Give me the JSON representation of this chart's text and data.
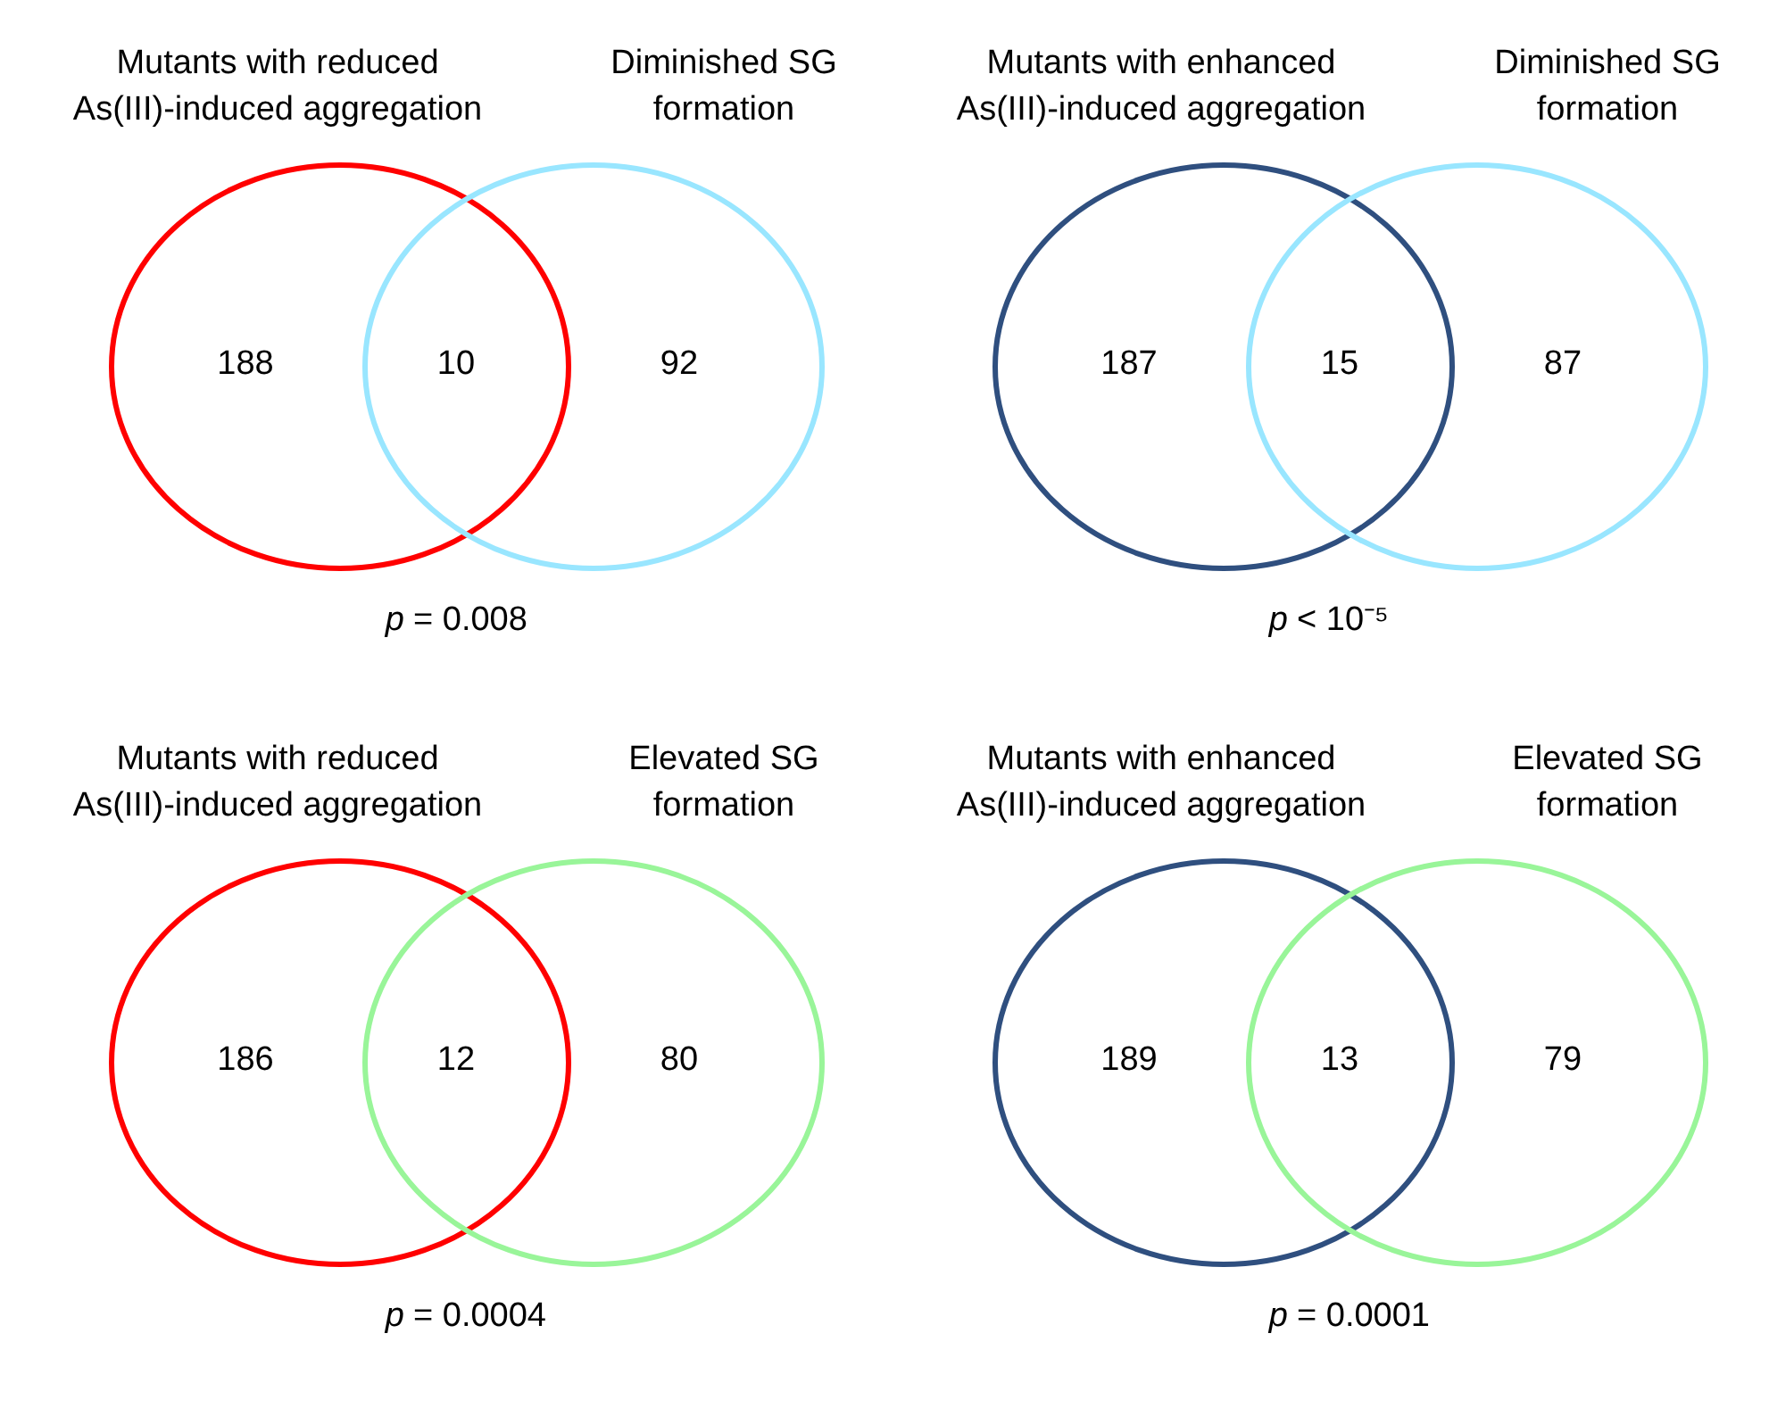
{
  "chart_data": [
    {
      "type": "other",
      "categories": [
        "Mutants with reduced\nAs(III)-induced aggregation",
        null,
        "Diminished SG\nformation"
      ],
      "colors": [
        "#ff0000",
        null,
        "#99e6ff"
      ],
      "values": [
        188,
        10,
        92
      ],
      "data_labels": true,
      "annotations": [
        "p = 0.008"
      ]
    },
    {
      "type": "other",
      "categories": [
        "Mutants with enhanced\nAs(III)-induced aggregation",
        null,
        "Diminished SG\nformation"
      ],
      "colors": [
        "#2f4f7f",
        null,
        "#99e6ff"
      ],
      "values": [
        187,
        15,
        87
      ],
      "data_labels": true,
      "annotations": [
        "p < 10⁻⁵"
      ]
    },
    {
      "type": "other",
      "categories": [
        "Mutants with reduced\nAs(III)-induced aggregation",
        null,
        "Elevated SG\nformation"
      ],
      "colors": [
        "#ff0000",
        null,
        "#99f599"
      ],
      "values": [
        186,
        12,
        80
      ],
      "data_labels": true,
      "annotations": [
        "p = 0.0004"
      ]
    },
    {
      "type": "other",
      "categories": [
        "Mutants with enhanced\nAs(III)-induced aggregation",
        null,
        "Elevated SG\nformation"
      ],
      "colors": [
        "#2f4f7f",
        null,
        "#99f599"
      ],
      "values": [
        189,
        13,
        79
      ],
      "data_labels": true,
      "annotations": [
        "p = 0.0001"
      ]
    }
  ]
}
